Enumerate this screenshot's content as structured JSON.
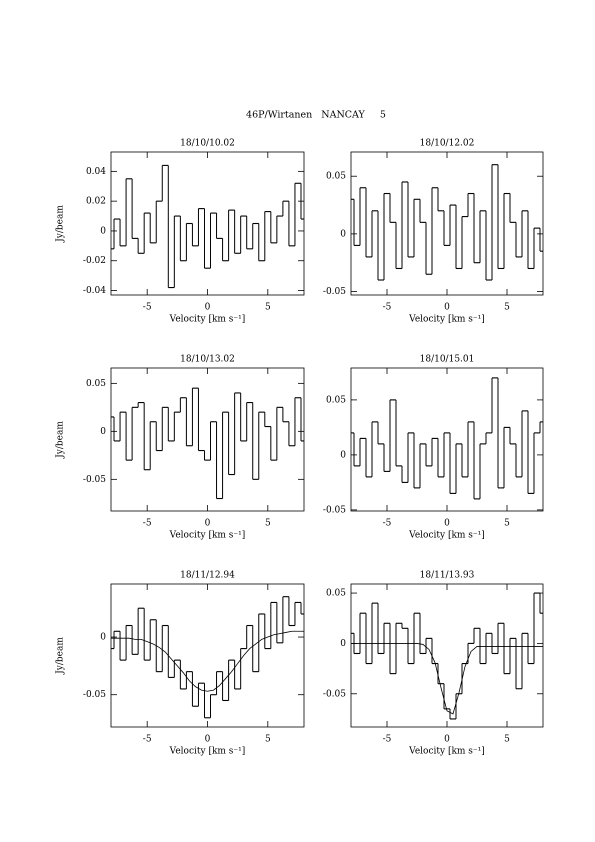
{
  "title": "46P/Wirtanen   NANCAY     5",
  "chart_data": [
    {
      "type": "line",
      "title": "18/10/10.02",
      "xlabel": "Velocity [km s⁻¹]",
      "ylabel": "Jy/beam",
      "x": [
        -8,
        -7.5,
        -7,
        -6.5,
        -6,
        -5.5,
        -5,
        -4.5,
        -4,
        -3.5,
        -3,
        -2.5,
        -2,
        -1.5,
        -1,
        -0.5,
        0,
        0.5,
        1,
        1.5,
        2,
        2.5,
        3,
        3.5,
        4,
        4.5,
        5,
        5.5,
        6,
        6.5,
        7,
        7.5,
        8
      ],
      "series": [
        {
          "color": "#000000",
          "drawstyle": "steps",
          "values": [
            -0.012,
            0.008,
            -0.01,
            0.035,
            -0.005,
            -0.015,
            0.012,
            -0.008,
            0.02,
            0.044,
            -0.038,
            0.01,
            -0.02,
            0.005,
            -0.01,
            0.015,
            -0.025,
            0.012,
            -0.005,
            -0.02,
            0.014,
            -0.015,
            0.01,
            -0.012,
            0.005,
            -0.02,
            0.013,
            -0.008,
            0.01,
            0.02,
            -0.01,
            0.032,
            0.008
          ]
        }
      ],
      "xlim": [
        -8,
        8
      ],
      "xticks": [
        -5,
        0,
        5
      ],
      "ylim": [
        -0.043,
        0.053
      ],
      "yticks": [
        -0.04,
        -0.02,
        0,
        0.02,
        0.04
      ]
    },
    {
      "type": "line",
      "title": "18/10/12.02",
      "xlabel": "Velocity [km s⁻¹]",
      "x": [
        -8,
        -7.5,
        -7,
        -6.5,
        -6,
        -5.5,
        -5,
        -4.5,
        -4,
        -3.5,
        -3,
        -2.5,
        -2,
        -1.5,
        -1,
        -0.5,
        0,
        0.5,
        1,
        1.5,
        2,
        2.5,
        3,
        3.5,
        4,
        4.5,
        5,
        5.5,
        6,
        6.5,
        7,
        7.5,
        8
      ],
      "series": [
        {
          "color": "#000000",
          "drawstyle": "steps",
          "values": [
            0.03,
            -0.01,
            0.04,
            -0.02,
            0.02,
            -0.04,
            0.035,
            0.01,
            -0.03,
            0.045,
            -0.02,
            0.03,
            0.01,
            -0.035,
            0.04,
            0.02,
            -0.01,
            0.025,
            -0.03,
            0.015,
            0.035,
            -0.025,
            0.02,
            -0.04,
            0.06,
            -0.03,
            0.035,
            0.01,
            -0.02,
            0.02,
            -0.03,
            0.005,
            -0.015
          ]
        }
      ],
      "xlim": [
        -8,
        8
      ],
      "xticks": [
        -5,
        0,
        5
      ],
      "ylim": [
        -0.053,
        0.071
      ],
      "yticks": [
        -0.05,
        0,
        0.05
      ]
    },
    {
      "type": "line",
      "title": "18/10/13.02",
      "xlabel": "Velocity [km s⁻¹]",
      "ylabel": "Jy/beam",
      "x": [
        -8,
        -7.5,
        -7,
        -6.5,
        -6,
        -5.5,
        -5,
        -4.5,
        -4,
        -3.5,
        -3,
        -2.5,
        -2,
        -1.5,
        -1,
        -0.5,
        0,
        0.5,
        1,
        1.5,
        2,
        2.5,
        3,
        3.5,
        4,
        4.5,
        5,
        5.5,
        6,
        6.5,
        7,
        7.5,
        8
      ],
      "series": [
        {
          "color": "#000000",
          "drawstyle": "steps",
          "values": [
            0.015,
            -0.01,
            0.02,
            -0.03,
            0.025,
            0.03,
            -0.04,
            0.01,
            -0.02,
            0.025,
            -0.01,
            0.02,
            0.035,
            -0.015,
            0.045,
            -0.02,
            -0.03,
            0.01,
            -0.07,
            0.02,
            -0.045,
            0.04,
            -0.01,
            0.03,
            -0.05,
            0.02,
            0.005,
            -0.03,
            0.025,
            0.01,
            -0.015,
            0.035,
            -0.01
          ]
        }
      ],
      "xlim": [
        -8,
        8
      ],
      "xticks": [
        -5,
        0,
        5
      ],
      "ylim": [
        -0.083,
        0.066
      ],
      "yticks": [
        -0.05,
        0,
        0.05
      ]
    },
    {
      "type": "line",
      "title": "18/10/15.01",
      "xlabel": "Velocity [km s⁻¹]",
      "x": [
        -8,
        -7.5,
        -7,
        -6.5,
        -6,
        -5.5,
        -5,
        -4.5,
        -4,
        -3.5,
        -3,
        -2.5,
        -2,
        -1.5,
        -1,
        -0.5,
        0,
        0.5,
        1,
        1.5,
        2,
        2.5,
        3,
        3.5,
        4,
        4.5,
        5,
        5.5,
        6,
        6.5,
        7,
        7.5,
        8
      ],
      "series": [
        {
          "color": "#000000",
          "drawstyle": "steps",
          "values": [
            0.02,
            -0.01,
            0.015,
            -0.02,
            0.03,
            0.01,
            -0.015,
            0.05,
            -0.01,
            -0.025,
            0.02,
            -0.03,
            0.01,
            -0.01,
            0.015,
            -0.02,
            0.02,
            -0.035,
            0.01,
            -0.02,
            0.03,
            -0.04,
            0.01,
            0.02,
            0.07,
            -0.03,
            0.025,
            0.01,
            -0.02,
            0.04,
            -0.035,
            0.02,
            0.03
          ]
        }
      ],
      "xlim": [
        -8,
        8
      ],
      "xticks": [
        -5,
        0,
        5
      ],
      "ylim": [
        -0.051,
        0.079
      ],
      "yticks": [
        -0.05,
        0,
        0.05
      ]
    },
    {
      "type": "line",
      "title": "18/11/12.94",
      "xlabel": "Velocity [km s⁻¹]",
      "ylabel": "Jy/beam",
      "x": [
        -8,
        -7.5,
        -7,
        -6.5,
        -6,
        -5.5,
        -5,
        -4.5,
        -4,
        -3.5,
        -3,
        -2.5,
        -2,
        -1.5,
        -1,
        -0.5,
        0,
        0.5,
        1,
        1.5,
        2,
        2.5,
        3,
        3.5,
        4,
        4.5,
        5,
        5.5,
        6,
        6.5,
        7,
        7.5,
        8
      ],
      "series": [
        {
          "color": "#000000",
          "drawstyle": "steps",
          "values": [
            -0.01,
            0.005,
            -0.02,
            0.01,
            -0.015,
            0.025,
            -0.02,
            0.015,
            -0.03,
            0.01,
            -0.035,
            -0.02,
            -0.045,
            -0.03,
            -0.06,
            -0.04,
            -0.07,
            -0.05,
            -0.03,
            -0.055,
            -0.02,
            -0.045,
            -0.01,
            0.01,
            -0.03,
            0.02,
            -0.01,
            0.03,
            -0.005,
            0.035,
            0.01,
            0.03,
            0.02
          ]
        },
        {
          "color": "#000000",
          "drawstyle": "line",
          "values": [
            -0.001,
            -0.001,
            -0.001,
            -0.001,
            -0.002,
            -0.002,
            -0.004,
            -0.006,
            -0.009,
            -0.013,
            -0.019,
            -0.025,
            -0.031,
            -0.038,
            -0.043,
            -0.046,
            -0.047,
            -0.046,
            -0.042,
            -0.036,
            -0.03,
            -0.023,
            -0.016,
            -0.01,
            -0.006,
            -0.002,
            0,
            0.002,
            0.003,
            0.004,
            0.005,
            0.005,
            0.005
          ]
        }
      ],
      "xlim": [
        -8,
        8
      ],
      "xticks": [
        -5,
        0,
        5
      ],
      "ylim": [
        -0.078,
        0.046
      ],
      "yticks": [
        -0.05,
        0
      ]
    },
    {
      "type": "line",
      "title": "18/11/13.93",
      "xlabel": "Velocity [km s⁻¹]",
      "x": [
        -8,
        -7.5,
        -7,
        -6.5,
        -6,
        -5.5,
        -5,
        -4.5,
        -4,
        -3.5,
        -3,
        -2.5,
        -2,
        -1.5,
        -1,
        -0.5,
        0,
        0.5,
        1,
        1.5,
        2,
        2.5,
        3,
        3.5,
        4,
        4.5,
        5,
        5.5,
        6,
        6.5,
        7,
        7.5,
        8
      ],
      "series": [
        {
          "color": "#000000",
          "drawstyle": "steps",
          "values": [
            0.01,
            -0.01,
            0.03,
            -0.02,
            0.04,
            -0.01,
            0.02,
            -0.03,
            0.02,
            0.015,
            -0.02,
            0.03,
            -0.01,
            0.005,
            -0.02,
            -0.04,
            -0.065,
            -0.075,
            -0.05,
            -0.02,
            0,
            0.015,
            -0.02,
            0.01,
            -0.01,
            0.02,
            -0.03,
            0.005,
            -0.045,
            0.01,
            -0.02,
            0.05,
            0.03
          ]
        },
        {
          "color": "#000000",
          "drawstyle": "line",
          "values": [
            0,
            0,
            0,
            0,
            0,
            0,
            0,
            0,
            0,
            0,
            0,
            0,
            -0.001,
            -0.006,
            -0.019,
            -0.044,
            -0.067,
            -0.07,
            -0.049,
            -0.023,
            -0.008,
            -0.003,
            -0.003,
            -0.003,
            -0.003,
            -0.003,
            -0.003,
            -0.003,
            -0.003,
            -0.003,
            -0.003,
            -0.003,
            -0.003
          ]
        }
      ],
      "xlim": [
        -8,
        8
      ],
      "xticks": [
        -5,
        0,
        5
      ],
      "ylim": [
        -0.083,
        0.059
      ],
      "yticks": [
        -0.05,
        0,
        0.05
      ]
    }
  ]
}
